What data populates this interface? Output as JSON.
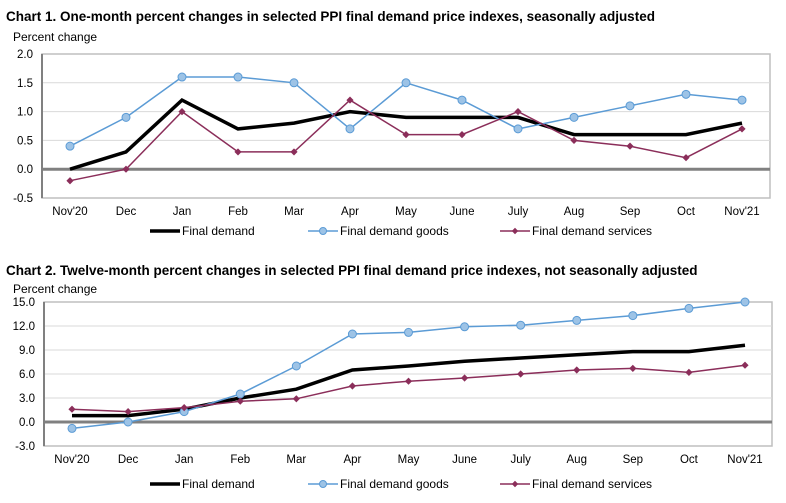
{
  "chart_data": [
    {
      "type": "line",
      "title": "Chart 1. One-month percent changes in selected PPI final demand price indexes, seasonally adjusted",
      "xlabel": "",
      "ylabel": "Percent change",
      "categories": [
        "Nov'20",
        "Dec",
        "Jan",
        "Feb",
        "Mar",
        "Apr",
        "May",
        "June",
        "July",
        "Aug",
        "Sep",
        "Oct",
        "Nov'21"
      ],
      "ylim": [
        -0.5,
        2.0
      ],
      "yticks": [
        "2.0",
        "1.5",
        "1.0",
        "0.5",
        "0.0",
        "-0.5"
      ],
      "ytick_values": [
        2.0,
        1.5,
        1.0,
        0.5,
        0.0,
        -0.5
      ],
      "grid": true,
      "legend_position": "bottom",
      "series": [
        {
          "name": "Final demand",
          "color": "#000000",
          "marker": "none",
          "values": [
            0.0,
            0.3,
            1.2,
            0.7,
            0.8,
            1.0,
            0.9,
            0.9,
            0.9,
            0.6,
            0.6,
            0.6,
            0.8
          ]
        },
        {
          "name": "Final demand goods",
          "color": "#5b9bd5",
          "marker": "circle",
          "values": [
            0.4,
            0.9,
            1.6,
            1.6,
            1.5,
            0.7,
            1.5,
            1.2,
            0.7,
            0.9,
            1.1,
            1.3,
            1.2
          ]
        },
        {
          "name": "Final demand services",
          "color": "#8b2e5a",
          "marker": "diamond",
          "values": [
            -0.2,
            0.0,
            1.0,
            0.3,
            0.3,
            1.2,
            0.6,
            0.6,
            1.0,
            0.5,
            0.4,
            0.2,
            0.7
          ]
        }
      ]
    },
    {
      "type": "line",
      "title": "Chart 2. Twelve-month percent changes in selected PPI final demand price indexes, not seasonally adjusted",
      "xlabel": "",
      "ylabel": "Percent change",
      "categories": [
        "Nov'20",
        "Dec",
        "Jan",
        "Feb",
        "Mar",
        "Apr",
        "May",
        "June",
        "July",
        "Aug",
        "Sep",
        "Oct",
        "Nov'21"
      ],
      "ylim": [
        -3.0,
        15.0
      ],
      "yticks": [
        "15.0",
        "12.0",
        "9.0",
        "6.0",
        "3.0",
        "0.0",
        "-3.0"
      ],
      "ytick_values": [
        15.0,
        12.0,
        9.0,
        6.0,
        3.0,
        0.0,
        -3.0
      ],
      "grid": true,
      "legend_position": "bottom",
      "series": [
        {
          "name": "Final demand",
          "color": "#000000",
          "marker": "none",
          "values": [
            0.8,
            0.8,
            1.6,
            3.0,
            4.1,
            6.5,
            7.0,
            7.6,
            8.0,
            8.4,
            8.8,
            8.8,
            9.6
          ]
        },
        {
          "name": "Final demand goods",
          "color": "#5b9bd5",
          "marker": "circle",
          "values": [
            -0.8,
            0.0,
            1.3,
            3.5,
            7.0,
            11.0,
            11.2,
            11.9,
            12.1,
            12.7,
            13.3,
            14.2,
            15.0
          ]
        },
        {
          "name": "Final demand services",
          "color": "#8b2e5a",
          "marker": "diamond",
          "values": [
            1.6,
            1.3,
            1.8,
            2.6,
            2.9,
            4.5,
            5.1,
            5.5,
            6.0,
            6.5,
            6.7,
            6.2,
            7.1
          ]
        }
      ]
    }
  ]
}
